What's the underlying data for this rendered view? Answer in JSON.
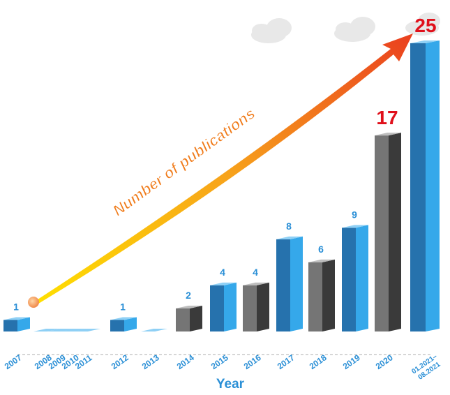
{
  "chart_data": {
    "type": "bar3d",
    "x_label": "Year",
    "annotation": "Number of publications",
    "categories": [
      "2007",
      "2008",
      "2009",
      "2010",
      "2011",
      "2012",
      "2013",
      "2014",
      "2015",
      "2016",
      "2017",
      "2018",
      "2019",
      "2020",
      "01.2021–08.2021"
    ],
    "values": [
      1,
      0,
      0,
      0,
      0,
      1,
      0,
      2,
      4,
      4,
      8,
      6,
      9,
      17,
      25
    ],
    "colors": [
      "#2f8fd8",
      "#2f8fd8",
      "#2f8fd8",
      "#2f8fd8",
      "#2f8fd8",
      "#2f8fd8",
      "#2f8fd8",
      "#5a5a5a",
      "#2f8fd8",
      "#5a5a5a",
      "#2f8fd8",
      "#5a5a5a",
      "#2f8fd8",
      "#5a5a5a",
      "#2f8fd8"
    ],
    "label_colors": [
      "#2a8fd6",
      "#2a8fd6",
      "#2a8fd6",
      "#2a8fd6",
      "#2a8fd6",
      "#2a8fd6",
      "#2a8fd6",
      "#2a8fd6",
      "#2a8fd6",
      "#2a8fd6",
      "#2a8fd6",
      "#2a8fd6",
      "#2a8fd6",
      "#e0101b",
      "#e0101b"
    ]
  }
}
